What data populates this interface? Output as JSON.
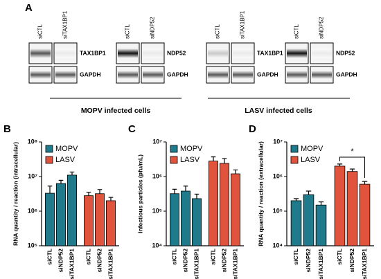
{
  "panel_a": {
    "label": "A",
    "blots": [
      {
        "lanes": [
          "siCTL",
          "siTAX1BP1"
        ],
        "bands": [
          "TAX1BP1",
          "GAPDH"
        ]
      },
      {
        "lanes": [
          "siCTL",
          "siNDP52"
        ],
        "bands": [
          "NDP52",
          "GAPDH"
        ]
      },
      {
        "lanes": [
          "siCTL",
          "siTAX1BP1"
        ],
        "bands": [
          "TAX1BP1",
          "GAPDH"
        ]
      },
      {
        "lanes": [
          "siCTL",
          "siNDP52"
        ],
        "bands": [
          "NDP52",
          "GAPDH"
        ]
      }
    ],
    "captions": [
      "MOPV infected cells",
      "LASV infected cells"
    ]
  },
  "chart_data": [
    {
      "type": "bar",
      "panel": "B",
      "y_label": "RNA quantity / reaction (intracellular)",
      "log_scale": true,
      "categories": [
        "siCTL",
        "siNDP52",
        "siTAX1BP1",
        "siCTL",
        "siNDP52",
        "siTAX1BP1"
      ],
      "series": [
        {
          "name": "MOPV",
          "color": "#1f7a8c",
          "values": [
            3300000,
            6300000,
            11000000,
            null,
            null,
            null
          ],
          "errors": [
            2000000,
            1500000,
            2500000,
            null,
            null,
            null
          ]
        },
        {
          "name": "LASV",
          "color": "#e0533d",
          "values": [
            null,
            null,
            null,
            2800000,
            3200000,
            2000000
          ],
          "errors": [
            null,
            null,
            null,
            700000,
            1000000,
            500000
          ]
        }
      ],
      "ylim": [
        100000,
        100000000
      ],
      "yticks": [
        {
          "value": 100000,
          "label": "10⁵"
        },
        {
          "value": 1000000,
          "label": "10⁶"
        },
        {
          "value": 10000000,
          "label": "10⁷"
        },
        {
          "value": 100000000,
          "label": "10⁸"
        }
      ]
    },
    {
      "type": "bar",
      "panel": "C",
      "y_label": "Infectious particles (pfu/mL)",
      "log_scale": true,
      "categories": [
        "siCTL",
        "siNDP52",
        "siTAX1BP1",
        "siCTL",
        "siNDP52",
        "siTAX1BP1"
      ],
      "series": [
        {
          "name": "MOPV",
          "color": "#1f7a8c",
          "values": [
            320000,
            380000,
            230000,
            null,
            null,
            null
          ],
          "errors": [
            110000,
            150000,
            80000,
            null,
            null,
            null
          ]
        },
        {
          "name": "LASV",
          "color": "#e0533d",
          "values": [
            null,
            null,
            null,
            2800000,
            2400000,
            1200000
          ],
          "errors": [
            null,
            null,
            null,
            900000,
            900000,
            350000
          ]
        }
      ],
      "ylim": [
        10000,
        10000000
      ],
      "yticks": [
        {
          "value": 10000,
          "label": "10⁴"
        },
        {
          "value": 100000,
          "label": "10⁵"
        },
        {
          "value": 1000000,
          "label": "10⁶"
        },
        {
          "value": 10000000,
          "label": "10⁷"
        }
      ]
    },
    {
      "type": "bar",
      "panel": "D",
      "y_label": "RNA quantity / reaction (extracellular)",
      "log_scale": true,
      "categories": [
        "siCTL",
        "siNDP52",
        "siTAX1BP1",
        "siCTL",
        "siNDP52",
        "siTAX1BP1"
      ],
      "series": [
        {
          "name": "MOPV",
          "color": "#1f7a8c",
          "values": [
            200000,
            300000,
            150000,
            null,
            null,
            null
          ],
          "errors": [
            30000,
            80000,
            35000,
            null,
            null,
            null
          ]
        },
        {
          "name": "LASV",
          "color": "#e0533d",
          "values": [
            null,
            null,
            null,
            2000000,
            1400000,
            600000
          ],
          "errors": [
            null,
            null,
            null,
            300000,
            250000,
            120000
          ]
        }
      ],
      "ylim": [
        10000,
        10000000
      ],
      "yticks": [
        {
          "value": 10000,
          "label": "10⁴"
        },
        {
          "value": 100000,
          "label": "10⁵"
        },
        {
          "value": 1000000,
          "label": "10⁶"
        },
        {
          "value": 10000000,
          "label": "10⁷"
        }
      ],
      "annotation": "*"
    }
  ]
}
